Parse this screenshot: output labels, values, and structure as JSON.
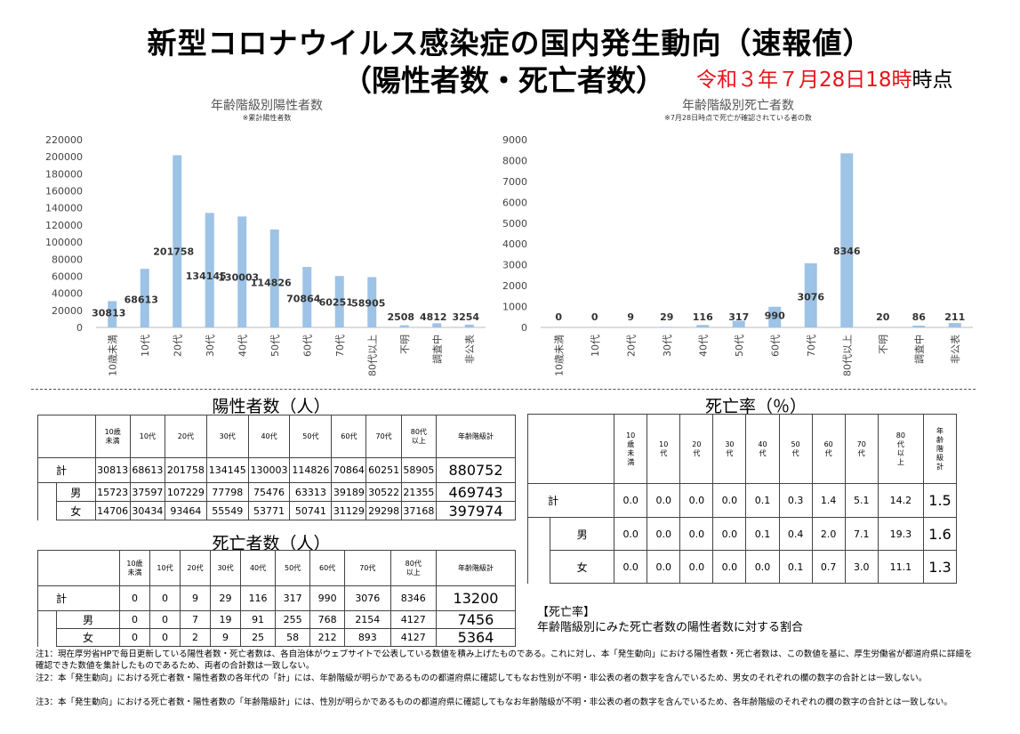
{
  "header": {
    "title_line1": "新型コロナウイルス感染症の国内発生動向（速報値）",
    "title_line2": "（陽性者数・死亡者数）",
    "as_of": "令和３年７月28日18時",
    "as_of_suffix": "時点"
  },
  "charts": {
    "positives": {
      "title": "年齢階級別陽性者数",
      "note": "※累計陽性者数"
    },
    "deaths": {
      "title": "年齢階級別死亡者数",
      "note": "※7月28日時点で死亡が確認されている者の数"
    }
  },
  "chart_data": [
    {
      "type": "bar",
      "title": "年齢階級別陽性者数",
      "subtitle": "※累計陽性者数",
      "categories": [
        "10歳未満",
        "10代",
        "20代",
        "30代",
        "40代",
        "50代",
        "60代",
        "70代",
        "80代以上",
        "不明",
        "調査中",
        "非公表"
      ],
      "values": [
        30813,
        68613,
        201758,
        134145,
        130003,
        114826,
        70864,
        60251,
        58905,
        2508,
        4812,
        3254
      ],
      "ylim": [
        0,
        220000
      ],
      "yticks": [
        0,
        20000,
        40000,
        60000,
        80000,
        100000,
        120000,
        140000,
        160000,
        180000,
        200000,
        220000
      ],
      "color": "#9dc3e6",
      "grid": false,
      "legend": "none"
    },
    {
      "type": "bar",
      "title": "年齢階級別死亡者数",
      "subtitle": "※7月28日時点で死亡が確認されている者の数",
      "categories": [
        "10歳未満",
        "10代",
        "20代",
        "30代",
        "40代",
        "50代",
        "60代",
        "70代",
        "80代以上",
        "不明",
        "調査中",
        "非公表"
      ],
      "values": [
        0,
        0,
        9,
        29,
        116,
        317,
        990,
        3076,
        8346,
        20,
        86,
        211
      ],
      "ylim": [
        0,
        9000
      ],
      "yticks": [
        0,
        1000,
        2000,
        3000,
        4000,
        5000,
        6000,
        7000,
        8000,
        9000
      ],
      "color": "#9dc3e6",
      "grid": false,
      "legend": "none"
    }
  ],
  "positives_table": {
    "title": "陽性者数（人）",
    "headers": [
      [
        "10歳",
        "未満"
      ],
      [
        "10代"
      ],
      [
        "20代"
      ],
      [
        "30代"
      ],
      [
        "40代"
      ],
      [
        "50代"
      ],
      [
        "60代"
      ],
      [
        "70代"
      ],
      [
        "80代",
        "以上"
      ],
      [
        "年齢階級計"
      ]
    ],
    "rows": [
      {
        "label": "計",
        "values": [
          "30813",
          "68613",
          "201758",
          "134145",
          "130003",
          "114826",
          "70864",
          "60251",
          "58905",
          "880752"
        ]
      },
      {
        "label": "男",
        "values": [
          "15723",
          "37597",
          "107229",
          "77798",
          "75476",
          "63313",
          "39189",
          "30522",
          "21355",
          "469743"
        ]
      },
      {
        "label": "女",
        "values": [
          "14706",
          "30434",
          "93464",
          "55549",
          "53771",
          "50741",
          "31129",
          "29298",
          "37168",
          "397974"
        ]
      }
    ]
  },
  "deaths_table": {
    "title": "死亡者数（人）",
    "headers": [
      [
        "10歳",
        "未満"
      ],
      [
        "10代"
      ],
      [
        "20代"
      ],
      [
        "30代"
      ],
      [
        "40代"
      ],
      [
        "50代"
      ],
      [
        "60代"
      ],
      [
        "70代"
      ],
      [
        "80代",
        "以上"
      ],
      [
        "年齢階級計"
      ]
    ],
    "rows": [
      {
        "label": "計",
        "values": [
          "0",
          "0",
          "9",
          "29",
          "116",
          "317",
          "990",
          "3076",
          "8346",
          "13200"
        ]
      },
      {
        "label": "男",
        "values": [
          "0",
          "0",
          "7",
          "19",
          "91",
          "255",
          "768",
          "2154",
          "4127",
          "7456"
        ]
      },
      {
        "label": "女",
        "values": [
          "0",
          "0",
          "2",
          "9",
          "25",
          "58",
          "212",
          "893",
          "4127",
          "5364"
        ]
      }
    ]
  },
  "rate_table": {
    "title": "死亡率（％）",
    "headers": [
      [
        "10",
        "歳",
        "未",
        "満"
      ],
      [
        "10",
        "代"
      ],
      [
        "20",
        "代"
      ],
      [
        "30",
        "代"
      ],
      [
        "40",
        "代"
      ],
      [
        "50",
        "代"
      ],
      [
        "60",
        "代"
      ],
      [
        "70",
        "代"
      ],
      [
        "80",
        "代",
        "以",
        "上"
      ],
      [
        "年",
        "齢",
        "階",
        "級",
        "計"
      ]
    ],
    "rows": [
      {
        "label": "計",
        "values": [
          "0.0",
          "0.0",
          "0.0",
          "0.0",
          "0.1",
          "0.3",
          "1.4",
          "5.1",
          "14.2",
          "1.5"
        ]
      },
      {
        "label": "男",
        "values": [
          "0.0",
          "0.0",
          "0.0",
          "0.0",
          "0.1",
          "0.4",
          "2.0",
          "7.1",
          "19.3",
          "1.6"
        ]
      },
      {
        "label": "女",
        "values": [
          "0.0",
          "0.0",
          "0.0",
          "0.0",
          "0.0",
          "0.1",
          "0.7",
          "3.0",
          "11.1",
          "1.3"
        ]
      }
    ]
  },
  "rate_note": {
    "head": "【死亡率】",
    "body": "年齢階級別にみた死亡者数の陽性者数に対する割合"
  },
  "footnotes": [
    "注1：現在厚労省HPで毎日更新している陽性者数・死亡者数は、各自治体がウェブサイトで公表している数値を積み上げたものである。これに対し、本「発生動向」における陽性者数・死亡者数は、この数値を基に、厚生労働省が都道府県に詳細を確認できた数値を集計したものであるため、両者の合計数は一致しない。",
    "注2：本「発生動向」における死亡者数・陽性者数の各年代の「計」には、年齢階級が明らかであるものの都道府県に確認してもなお性別が不明・非公表の者の数字を含んでいるため、男女のそれぞれの欄の数字の合計とは一致しない。",
    "注3：本「発生動向」における死亡者数・陽性者数の「年齢階級計」には、性別が明らかであるものの都道府県に確認してもなお年齢階級が不明・非公表の者の数字を含んでいるため、各年齢階級のそれぞれの欄の数字の合計とは一致しない。"
  ]
}
